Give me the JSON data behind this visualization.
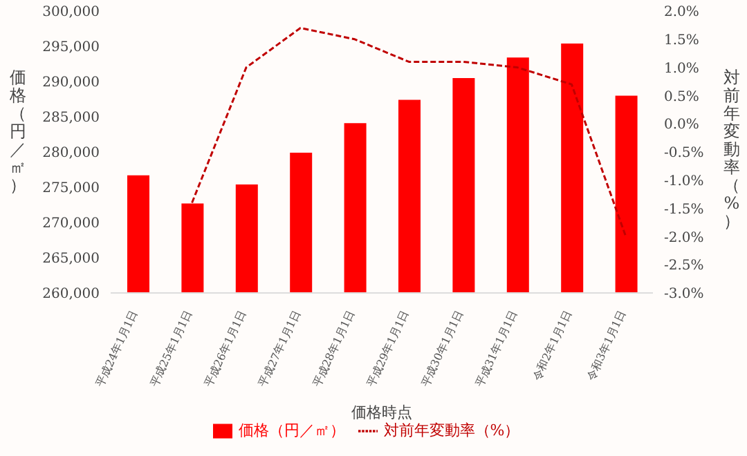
{
  "chart_data": {
    "type": "bar",
    "xlabel": "価格時点",
    "ylabel": "価格（円／㎡）",
    "y2label": "対前年変動率（%）",
    "categories": [
      "平成24年1月1日",
      "平成25年1月1日",
      "平成26年1月1日",
      "平成27年1月1日",
      "平成28年1月1日",
      "平成29年1月1日",
      "平成30年1月1日",
      "平成31年1月1日",
      "令和2年1月1日",
      "令和3年1月1日"
    ],
    "series": [
      {
        "name": "価格（円／㎡）",
        "color": "#ff0000",
        "values": [
          276700,
          272700,
          275400,
          279900,
          284100,
          287400,
          290500,
          293400,
          295400,
          288000
        ]
      },
      {
        "name": "対前年変動率（%）",
        "type": "line",
        "axis": "y2",
        "color": "#c00000",
        "line_style": "dashed",
        "marker": "none",
        "values": [
          null,
          -1.4,
          1.0,
          1.7,
          1.5,
          1.1,
          1.1,
          1.0,
          0.7,
          -2.0
        ]
      }
    ],
    "ylim": [
      260000,
      300000
    ],
    "yticks": [
      {
        "value": 260000,
        "label": "260,000"
      },
      {
        "value": 265000,
        "label": "265,000"
      },
      {
        "value": 270000,
        "label": "270,000"
      },
      {
        "value": 275000,
        "label": "275,000"
      },
      {
        "value": 280000,
        "label": "280,000"
      },
      {
        "value": 285000,
        "label": "285,000"
      },
      {
        "value": 290000,
        "label": "290,000"
      },
      {
        "value": 295000,
        "label": "295,000"
      },
      {
        "value": 300000,
        "label": "300,000"
      }
    ],
    "y2lim": [
      -3,
      2
    ],
    "y2ticks": [
      {
        "value": -3,
        "label": "-3.0%"
      },
      {
        "value": -2.5,
        "label": "-2.5%"
      },
      {
        "value": -2,
        "label": "-2.0%"
      },
      {
        "value": -1.5,
        "label": "-1.5%"
      },
      {
        "value": -1,
        "label": "-1.0%"
      },
      {
        "value": -0.5,
        "label": "-0.5%"
      },
      {
        "value": 0,
        "label": "0.0%"
      },
      {
        "value": 0.5,
        "label": "0.5%"
      },
      {
        "value": 1,
        "label": "1.0%"
      },
      {
        "value": 1.5,
        "label": "1.5%"
      },
      {
        "value": 2,
        "label": "2.0%"
      }
    ],
    "grid": false,
    "legend": "bottom"
  }
}
